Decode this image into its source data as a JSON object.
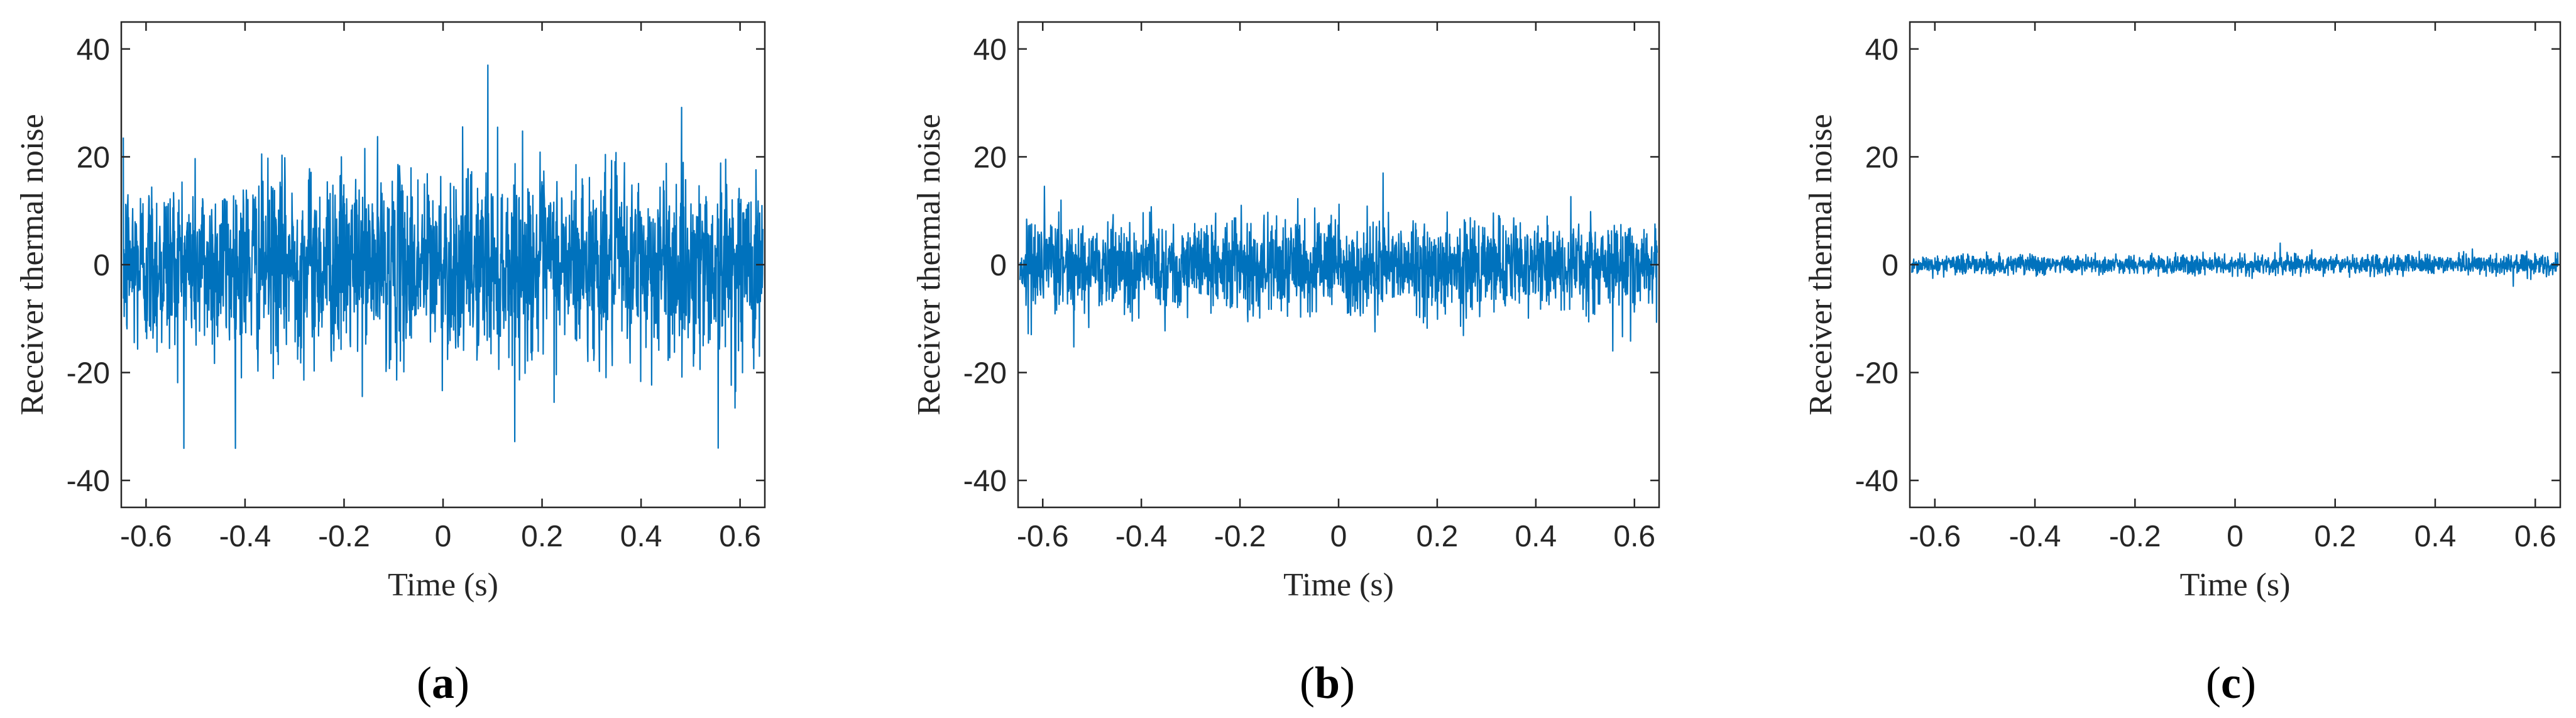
{
  "colors": {
    "series": "#0072BD",
    "axis": "#262626",
    "background": "#ffffff"
  },
  "chart_data": [
    {
      "type": "line",
      "panel": "a",
      "caption_letter": "a",
      "xlabel": "Time (s)",
      "ylabel": "Receiver thermal noise",
      "xlim": [
        -0.65,
        0.65
      ],
      "ylim": [
        -45,
        45
      ],
      "xticks": [
        -0.6,
        -0.4,
        -0.2,
        0,
        0.2,
        0.4,
        0.6
      ],
      "xtick_labels": [
        "-0.6",
        "-0.4",
        "-0.2",
        "0",
        "0.2",
        "0.4",
        "0.6"
      ],
      "yticks": [
        -40,
        -20,
        0,
        20,
        40
      ],
      "ytick_labels": [
        "-40",
        "-20",
        "0",
        "20",
        "40"
      ],
      "series": [
        {
          "color": "#0072BD",
          "noise_sd": 8.5,
          "peak_max": 37,
          "peak_min": -34
        }
      ]
    },
    {
      "type": "line",
      "panel": "b",
      "caption_letter": "b",
      "xlabel": "Time (s)",
      "ylabel": "Receiver thermal noise",
      "xlim": [
        -0.65,
        0.65
      ],
      "ylim": [
        -45,
        45
      ],
      "xticks": [
        -0.6,
        -0.4,
        -0.2,
        0,
        0.2,
        0.4,
        0.6
      ],
      "xtick_labels": [
        "-0.6",
        "-0.4",
        "-0.2",
        "0",
        "0.2",
        "0.4",
        "0.6"
      ],
      "yticks": [
        -40,
        -20,
        0,
        20,
        40
      ],
      "ytick_labels": [
        "-40",
        "-20",
        "0",
        "20",
        "40"
      ],
      "series": [
        {
          "color": "#0072BD",
          "noise_sd": 4.2,
          "peak_max": 17,
          "peak_min": -16
        }
      ]
    },
    {
      "type": "line",
      "panel": "c",
      "caption_letter": "c",
      "xlabel": "Time (s)",
      "ylabel": "Receiver thermal noise",
      "xlim": [
        -0.65,
        0.65
      ],
      "ylim": [
        -45,
        45
      ],
      "xticks": [
        -0.6,
        -0.4,
        -0.2,
        0,
        0.2,
        0.4,
        0.6
      ],
      "xtick_labels": [
        "-0.6",
        "-0.4",
        "-0.2",
        "0",
        "0.2",
        "0.4",
        "0.6"
      ],
      "yticks": [
        -40,
        -20,
        0,
        20,
        40
      ],
      "ytick_labels": [
        "-40",
        "-20",
        "0",
        "20",
        "40"
      ],
      "series": [
        {
          "color": "#0072BD",
          "noise_sd": 0.9,
          "peak_max": 4,
          "peak_min": -4
        }
      ]
    }
  ]
}
